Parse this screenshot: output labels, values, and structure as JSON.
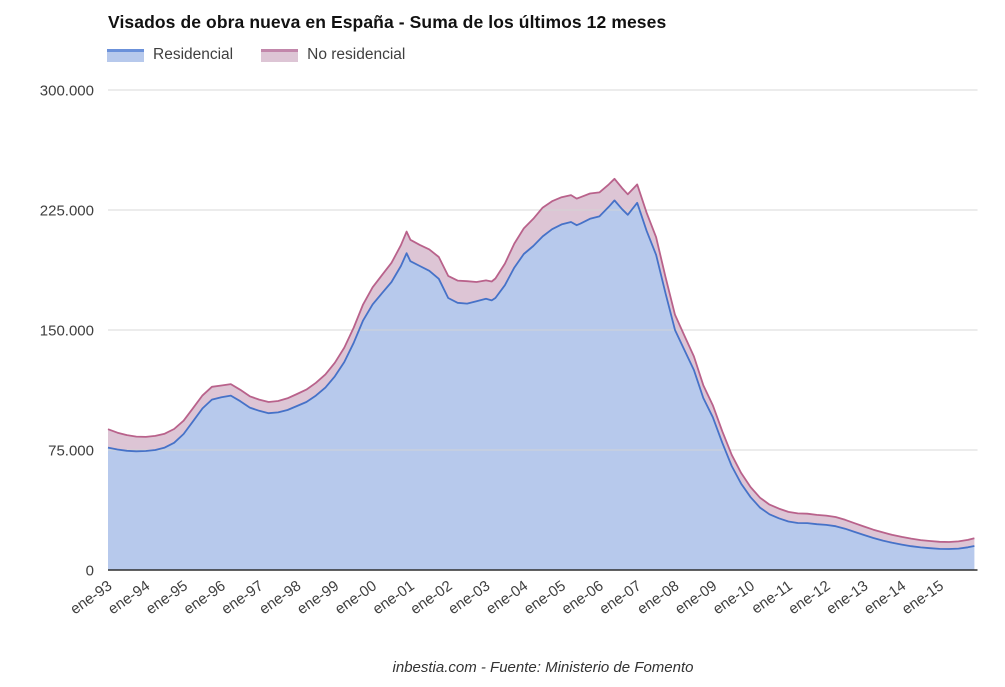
{
  "header": {
    "title": "Visados de obra nueva en España - Suma de los últimos 12 meses",
    "legend": [
      {
        "label": "Residencial"
      },
      {
        "label": "No residencial"
      }
    ]
  },
  "footer": {
    "text": "inbestia.com - Fuente: Ministerio de Fomento"
  },
  "colors": {
    "residential_fill": "#b7c9ec",
    "residential_line": "#4672c8",
    "residential_swatch_top": "#6b91da",
    "non_residential_fill": "#ddc5d5",
    "non_residential_line": "#b9628b",
    "non_residential_swatch_top": "#c287ab",
    "grid": "#d4d4d4",
    "axis_baseline": "#2f2f2f",
    "axis_text": "#3f3f3f"
  },
  "chart_data": {
    "type": "area",
    "stacked": true,
    "title": "Visados de obra nueva en España - Suma de los últimos 12 meses",
    "xlabel": "",
    "ylabel": "",
    "xlim": [
      1993,
      2016
    ],
    "ylim": [
      0,
      300000
    ],
    "grid": "horizontal",
    "legend_position": "top-left",
    "x_unit": "decimal year (monthly series, enero ticks labeled)",
    "y_ticks": [
      {
        "value": 0,
        "label": "0"
      },
      {
        "value": 75000,
        "label": "75.000"
      },
      {
        "value": 150000,
        "label": "150.000"
      },
      {
        "value": 225000,
        "label": "225.000"
      },
      {
        "value": 300000,
        "label": "300.000"
      }
    ],
    "x_tick_years": [
      1993,
      1994,
      1995,
      1996,
      1997,
      1998,
      1999,
      2000,
      2001,
      2002,
      2003,
      2004,
      2005,
      2006,
      2007,
      2008,
      2009,
      2010,
      2011,
      2012,
      2013,
      2014,
      2015
    ],
    "x_tick_labels": [
      "ene-93",
      "ene-94",
      "ene-95",
      "ene-96",
      "ene-97",
      "ene-98",
      "ene-99",
      "ene-00",
      "ene-01",
      "ene-02",
      "ene-03",
      "ene-04",
      "ene-05",
      "ene-06",
      "ene-07",
      "ene-08",
      "ene-09",
      "ene-10",
      "ene-11",
      "ene-12",
      "ene-13",
      "ene-14",
      "ene-15"
    ],
    "x": [
      1993,
      1993.25,
      1993.5,
      1993.75,
      1994,
      1994.25,
      1994.5,
      1994.75,
      1995,
      1995.25,
      1995.5,
      1995.75,
      1996,
      1996.25,
      1996.5,
      1996.75,
      1997,
      1997.25,
      1997.5,
      1997.75,
      1998,
      1998.25,
      1998.5,
      1998.75,
      1999,
      1999.25,
      1999.5,
      1999.75,
      2000,
      2000.25,
      2000.5,
      2000.75,
      2000.9,
      2001,
      2001.25,
      2001.5,
      2001.75,
      2002,
      2002.25,
      2002.5,
      2002.75,
      2003,
      2003.15,
      2003.25,
      2003.5,
      2003.75,
      2004,
      2004.25,
      2004.5,
      2004.75,
      2005,
      2005.25,
      2005.4,
      2005.5,
      2005.75,
      2006,
      2006.25,
      2006.4,
      2006.6,
      2006.75,
      2007,
      2007.25,
      2007.5,
      2007.75,
      2008,
      2008.25,
      2008.5,
      2008.75,
      2009,
      2009.25,
      2009.5,
      2009.75,
      2010,
      2010.25,
      2010.5,
      2010.75,
      2011,
      2011.25,
      2011.5,
      2011.75,
      2012,
      2012.25,
      2012.5,
      2012.75,
      2013,
      2013.25,
      2013.5,
      2013.75,
      2014,
      2014.25,
      2014.5,
      2014.75,
      2015,
      2015.25,
      2015.5,
      2015.75,
      2015.92
    ],
    "series": [
      {
        "name": "Residencial",
        "values": [
          76500,
          75300,
          74500,
          74200,
          74400,
          75000,
          76500,
          79500,
          85000,
          93000,
          101000,
          106500,
          108000,
          109000,
          105500,
          101500,
          99500,
          98000,
          98500,
          100000,
          102500,
          105000,
          109000,
          114000,
          121000,
          130000,
          142000,
          156000,
          166000,
          173000,
          180000,
          190000,
          198000,
          193000,
          190000,
          187000,
          182000,
          170000,
          167000,
          166500,
          168000,
          169500,
          168500,
          170000,
          178000,
          189000,
          197500,
          202500,
          208500,
          213000,
          216000,
          217500,
          215500,
          216500,
          219500,
          221000,
          227000,
          231000,
          225500,
          222000,
          229500,
          212000,
          197000,
          173000,
          150000,
          137500,
          125000,
          107500,
          95500,
          79500,
          65000,
          54000,
          45500,
          39000,
          34800,
          32300,
          30300,
          29400,
          29300,
          28600,
          28200,
          27400,
          25800,
          23800,
          21900,
          20000,
          18400,
          17000,
          15900,
          14900,
          14100,
          13600,
          13200,
          13100,
          13400,
          14200,
          15000
        ]
      },
      {
        "name": "No residencial",
        "values": [
          11500,
          10500,
          9800,
          9200,
          8800,
          8800,
          8700,
          8600,
          8300,
          8200,
          8100,
          8000,
          7300,
          7200,
          7100,
          7050,
          7000,
          7000,
          7100,
          7300,
          7500,
          7750,
          8000,
          8250,
          8500,
          9000,
          9500,
          10000,
          10700,
          11300,
          12000,
          13000,
          13500,
          13400,
          13200,
          13400,
          13600,
          13800,
          13900,
          14000,
          12000,
          11500,
          11800,
          12200,
          13500,
          15000,
          16000,
          17000,
          18000,
          17500,
          17000,
          16800,
          16600,
          16500,
          15800,
          15000,
          14000,
          13500,
          13200,
          12800,
          11500,
          11300,
          11000,
          10200,
          9500,
          9000,
          8500,
          8000,
          7500,
          7200,
          7000,
          6700,
          6300,
          6200,
          6100,
          6050,
          6000,
          5950,
          5900,
          5850,
          5800,
          5700,
          5600,
          5450,
          5300,
          5200,
          5100,
          4950,
          4800,
          4700,
          4600,
          4500,
          4400,
          4400,
          4450,
          4600,
          4800
        ]
      }
    ]
  }
}
